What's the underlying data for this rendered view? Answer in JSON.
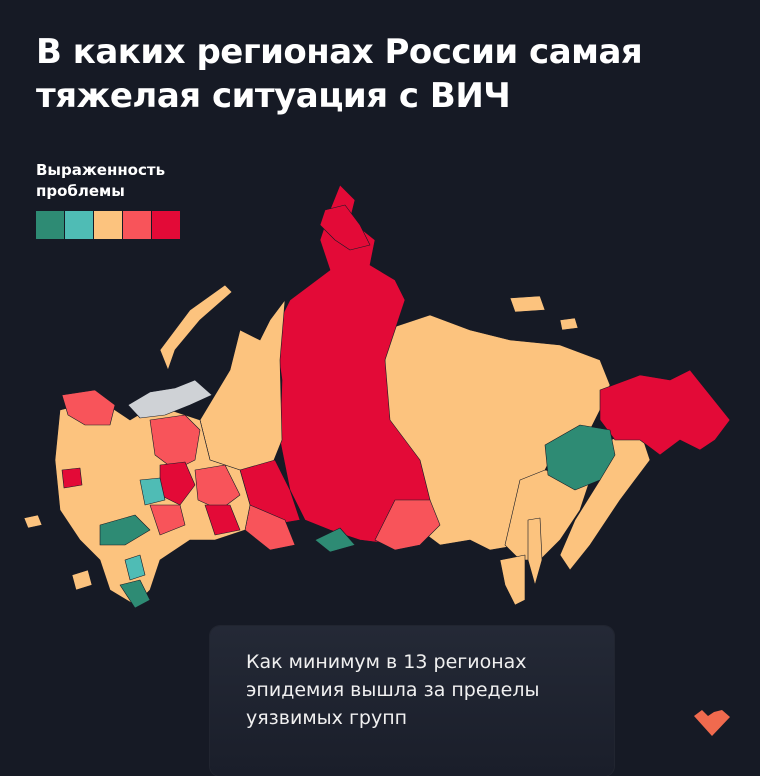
{
  "title": "В каких регионах России самая тяжелая ситуация с ВИЧ",
  "legend": {
    "title": "Выраженность проблемы",
    "colors": [
      "#2e8b74",
      "#4fbcb5",
      "#fcc37e",
      "#f8545a",
      "#e30a37"
    ]
  },
  "map": {
    "no_data_color": "#cfd2d6"
  },
  "caption": "Как минимум в 13 регионах эпидемия вышла за пределы уязвимых групп",
  "logo": {
    "icon": "heart-pixel-logo",
    "color": "#f06a4e"
  }
}
